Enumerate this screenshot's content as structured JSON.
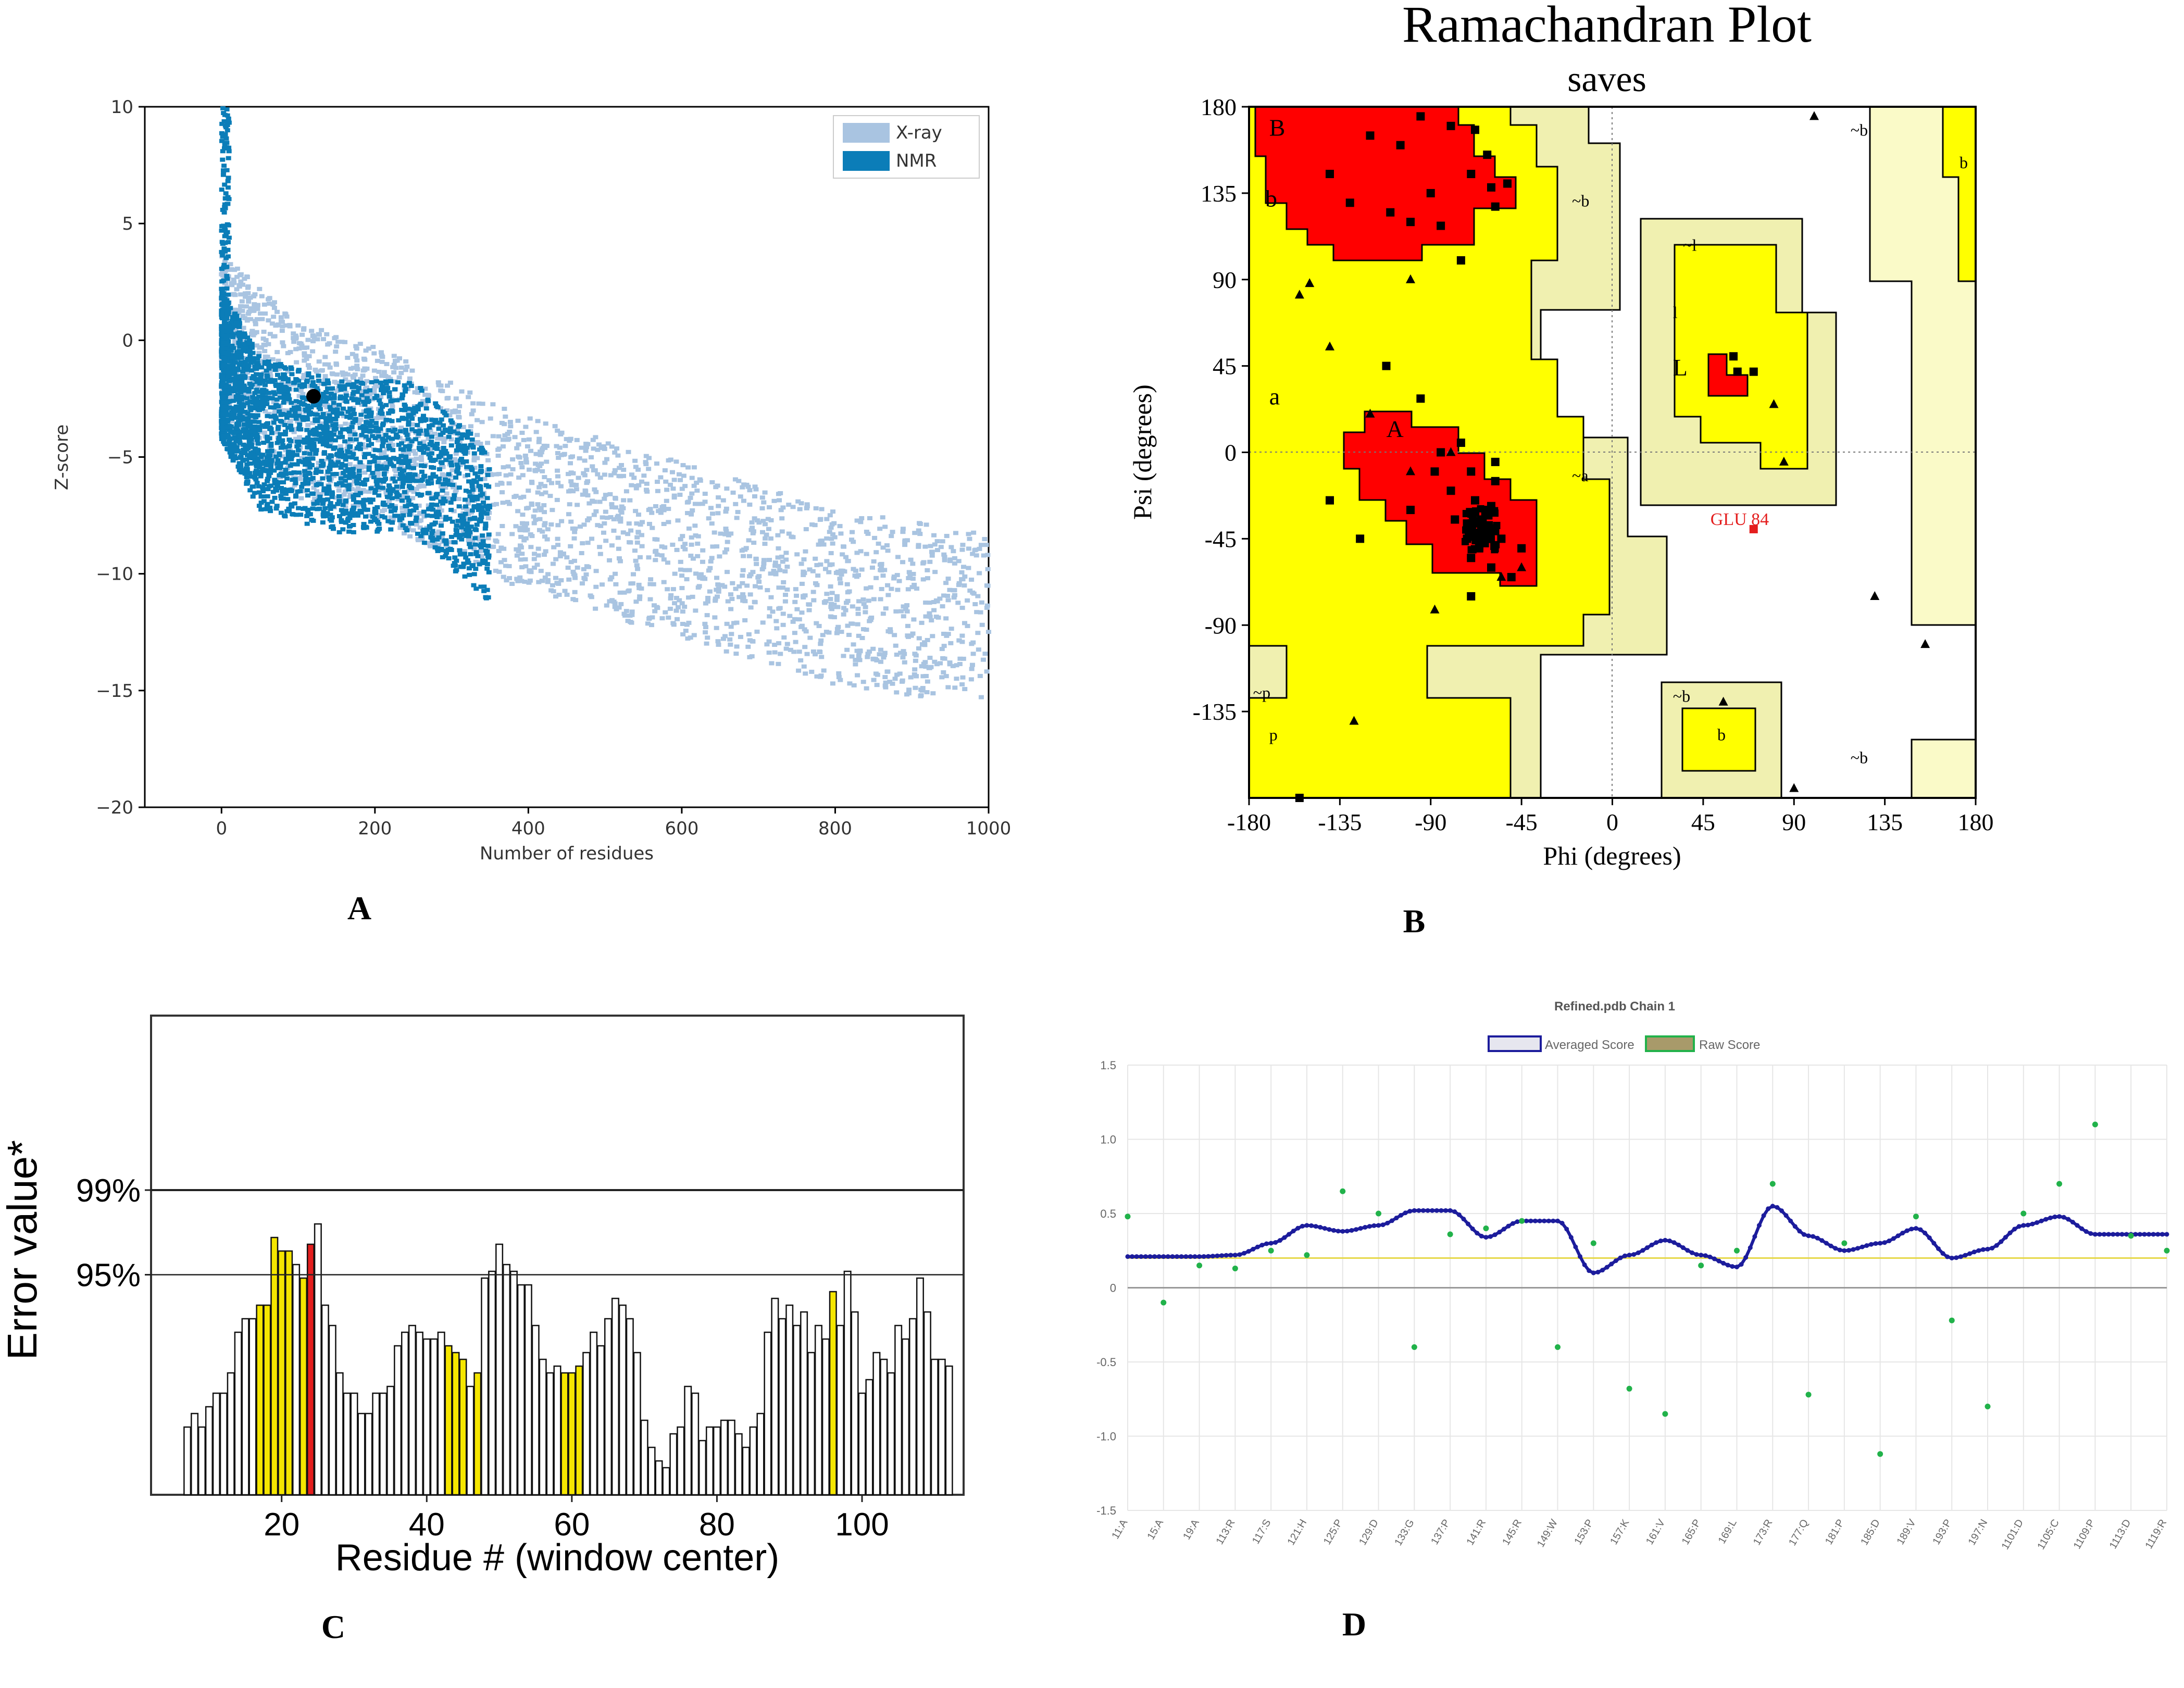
{
  "panels": {
    "A": "A",
    "B": "B",
    "C": "C",
    "D": "D"
  },
  "colors": {
    "xray": "#a9c4e1",
    "nmr": "#0b7db8",
    "point_black": "#000000",
    "rama_core": "#ff0000",
    "rama_allowed": "#ffff00",
    "rama_generous": "#f0f0b0",
    "rama_light": "#fafac8",
    "bar_yellow": "#f5e600",
    "bar_red": "#e41e1e",
    "avg_line": "#1c1c9c",
    "raw_point": "#21b24a",
    "threshold": "#e6d84a"
  },
  "chart_data": [
    {
      "id": "A",
      "type": "scatter",
      "title": "",
      "xlabel": "Number of residues",
      "ylabel": "Z-score",
      "xlim": [
        -100,
        1000
      ],
      "ylim": [
        -20,
        10
      ],
      "xticks": [
        "0",
        "200",
        "400",
        "600",
        "800",
        "1000"
      ],
      "yticks": [
        "10",
        "5",
        "0",
        "−5",
        "−10",
        "−15",
        "−20"
      ],
      "legend": {
        "position": "top-right",
        "entries": [
          "X-ray",
          "NMR"
        ]
      },
      "series": [
        {
          "name": "X-ray",
          "trend": [
            [
              0,
              0
            ],
            [
              100,
              -3
            ],
            [
              200,
              -4
            ],
            [
              400,
              -7
            ],
            [
              600,
              -9
            ],
            [
              800,
              -11
            ],
            [
              1000,
              -12
            ]
          ]
        },
        {
          "name": "NMR",
          "trend": [
            [
              0,
              -1
            ],
            [
              50,
              -4
            ],
            [
              150,
              -5
            ],
            [
              250,
              -5
            ],
            [
              350,
              -8
            ]
          ]
        }
      ],
      "highlight": {
        "x": 120,
        "y": -2.4
      }
    },
    {
      "id": "B",
      "type": "scatter",
      "title": "Ramachandran Plot",
      "subtitle": "saves",
      "xlabel": "Phi (degrees)",
      "ylabel": "Psi (degrees)",
      "xlim": [
        -180,
        180
      ],
      "ylim": [
        -180,
        180
      ],
      "xticks": [
        "-180",
        "-135",
        "-90",
        "-45",
        "0",
        "45",
        "90",
        "135",
        "180"
      ],
      "yticks": [
        "180",
        "135",
        "90",
        "45",
        "0",
        "-45",
        "-90",
        "-135"
      ],
      "region_labels": [
        "B",
        "b",
        "~b",
        "~l",
        "l",
        "L",
        "a",
        "A",
        "~a",
        "~b",
        "b",
        "~p",
        "p",
        "~b",
        "b",
        "~b"
      ],
      "outlier": {
        "label": "GLU 84",
        "phi": 70,
        "psi": -40
      },
      "residues": [
        [
          -120,
          165
        ],
        [
          -140,
          145
        ],
        [
          -105,
          160
        ],
        [
          -95,
          175
        ],
        [
          -80,
          170
        ],
        [
          -68,
          168
        ],
        [
          -62,
          155
        ],
        [
          -70,
          145
        ],
        [
          -90,
          135
        ],
        [
          -110,
          125
        ],
        [
          -100,
          120
        ],
        [
          -130,
          130
        ],
        [
          -85,
          118
        ],
        [
          -75,
          100
        ],
        [
          -58,
          128
        ],
        [
          -52,
          140
        ],
        [
          -60,
          138
        ],
        [
          -112,
          45
        ],
        [
          -95,
          28
        ],
        [
          -85,
          0
        ],
        [
          -75,
          5
        ],
        [
          -70,
          -10
        ],
        [
          -68,
          -25
        ],
        [
          -65,
          -35
        ],
        [
          -70,
          -40
        ],
        [
          -62,
          -30
        ],
        [
          -72,
          -45
        ],
        [
          -66,
          -50
        ],
        [
          -60,
          -28
        ],
        [
          -80,
          -20
        ],
        [
          -58,
          -15
        ],
        [
          -64,
          -42
        ],
        [
          -70,
          -55
        ],
        [
          -78,
          -35
        ],
        [
          -55,
          -45
        ],
        [
          -88,
          -10
        ],
        [
          -100,
          -30
        ],
        [
          -125,
          -45
        ],
        [
          -140,
          -25
        ],
        [
          -70,
          -75
        ],
        [
          -50,
          -65
        ],
        [
          -45,
          -50
        ],
        [
          -58,
          -5
        ],
        [
          60,
          50
        ],
        [
          62,
          42
        ],
        [
          70,
          42
        ],
        [
          -155,
          -180
        ],
        [
          -60,
          -60
        ]
      ],
      "glycine": [
        [
          -155,
          82
        ],
        [
          -150,
          88
        ],
        [
          -140,
          55
        ],
        [
          -88,
          -82
        ],
        [
          -128,
          -140
        ],
        [
          55,
          -130
        ],
        [
          80,
          25
        ],
        [
          85,
          -5
        ],
        [
          100,
          175
        ],
        [
          130,
          -75
        ],
        [
          155,
          -100
        ],
        [
          90,
          -175
        ],
        [
          -55,
          -65
        ],
        [
          -80,
          0
        ],
        [
          -100,
          -10
        ],
        [
          -120,
          20
        ],
        [
          -45,
          -60
        ],
        [
          -100,
          90
        ]
      ]
    },
    {
      "id": "C",
      "type": "bar",
      "title": "",
      "xlabel": "Residue # (window center)",
      "ylabel": "Error value*",
      "thresholds": [
        "99%",
        "95%"
      ],
      "xticks": [
        "20",
        "40",
        "60",
        "80",
        "100"
      ],
      "x_start": 7,
      "values": [
        10,
        12,
        10,
        13,
        15,
        15,
        18,
        24,
        26,
        26,
        28,
        28,
        38,
        36,
        36,
        34,
        32,
        37,
        40,
        28,
        25,
        18,
        15,
        15,
        12,
        12,
        15,
        15,
        16,
        22,
        24,
        25,
        24,
        23,
        23,
        24,
        22,
        21,
        20,
        16,
        18,
        32,
        33,
        37,
        34,
        33,
        31,
        31,
        25,
        20,
        18,
        19,
        18,
        18,
        19,
        21,
        24,
        22,
        26,
        29,
        28,
        26,
        21,
        11,
        7,
        5,
        4,
        9,
        10,
        16,
        15,
        8,
        10,
        10,
        11,
        11,
        9,
        7,
        10,
        12,
        24,
        29,
        26,
        28,
        25,
        27,
        21,
        25,
        23,
        30,
        25,
        33,
        27,
        15,
        17,
        21,
        20,
        18,
        25,
        23,
        26,
        32,
        27,
        20,
        20,
        19
      ],
      "highlight_yellow": [
        17,
        18,
        19,
        20,
        21,
        23,
        43,
        44,
        45,
        47,
        59,
        60,
        61,
        96
      ],
      "highlight_red": [
        24
      ]
    },
    {
      "id": "D",
      "type": "line",
      "title": "Refined.pdb Chain 1",
      "xlabel": "",
      "ylabel": "",
      "ylim": [
        -1.5,
        1.5
      ],
      "yticks": [
        "1.5",
        "1.0",
        "0.5",
        "0",
        "-0.5",
        "-1.0",
        "-1.5"
      ],
      "threshold": 0.2,
      "categories": [
        "11:A",
        "15:A",
        "19:A",
        "113:R",
        "117:S",
        "121:H",
        "125:P",
        "129:D",
        "133:G",
        "137:P",
        "141:R",
        "145:R",
        "149:W",
        "153:P",
        "157:K",
        "161:V",
        "165:P",
        "169:L",
        "173:R",
        "177:Q",
        "181:P",
        "185:D",
        "189:V",
        "193:P",
        "197:N",
        "1101:D",
        "1105:C",
        "1109:P",
        "1113:D",
        "1119:R"
      ],
      "legend": {
        "position": "top-center",
        "entries": [
          "Averaged Score",
          "Raw Score"
        ]
      },
      "series": [
        {
          "name": "Averaged Score",
          "values": [
            0.21,
            0.21,
            0.21,
            0.22,
            0.3,
            0.42,
            0.38,
            0.42,
            0.52,
            0.52,
            0.34,
            0.45,
            0.45,
            0.1,
            0.22,
            0.32,
            0.22,
            0.14,
            0.55,
            0.35,
            0.25,
            0.3,
            0.4,
            0.2,
            0.26,
            0.42,
            0.48,
            0.36,
            0.36,
            0.36
          ]
        },
        {
          "name": "Raw Score",
          "values": [
            0.48,
            -0.1,
            0.15,
            0.13,
            0.25,
            0.22,
            0.65,
            0.5,
            -0.4,
            0.36,
            0.4,
            0.45,
            -0.4,
            0.3,
            -0.68,
            -0.85,
            0.15,
            0.25,
            0.7,
            -0.72,
            0.3,
            -1.12,
            0.48,
            -0.22,
            -0.8,
            0.5,
            0.7,
            1.1,
            0.35,
            0.25
          ]
        }
      ]
    }
  ]
}
